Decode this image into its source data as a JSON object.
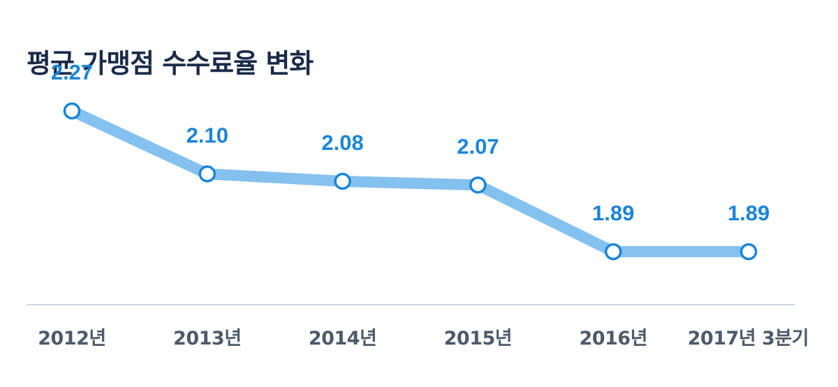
{
  "chart_data": {
    "type": "line",
    "title": "평균 가맹점 수수료율 변화",
    "categories": [
      "2012년",
      "2013년",
      "2014년",
      "2015년",
      "2016년",
      "2017년 3분기"
    ],
    "series": [
      {
        "values": [
          2.27,
          2.1,
          2.08,
          2.07,
          1.89,
          1.89
        ],
        "labels": [
          "2.27",
          "2.10",
          "2.08",
          "2.07",
          "1.89",
          "1.89"
        ]
      }
    ],
    "ylim": [
      1.6,
      2.4
    ],
    "grid": false,
    "legend": "none",
    "colors": {
      "line": "#85c1ef",
      "marker_stroke": "#1b84d8",
      "marker_fill": "#ffffff",
      "value_label": "#1b84d8",
      "axis": "#cfd6de",
      "title": "#1a2b49",
      "category_label": "#4d5a6a"
    }
  }
}
